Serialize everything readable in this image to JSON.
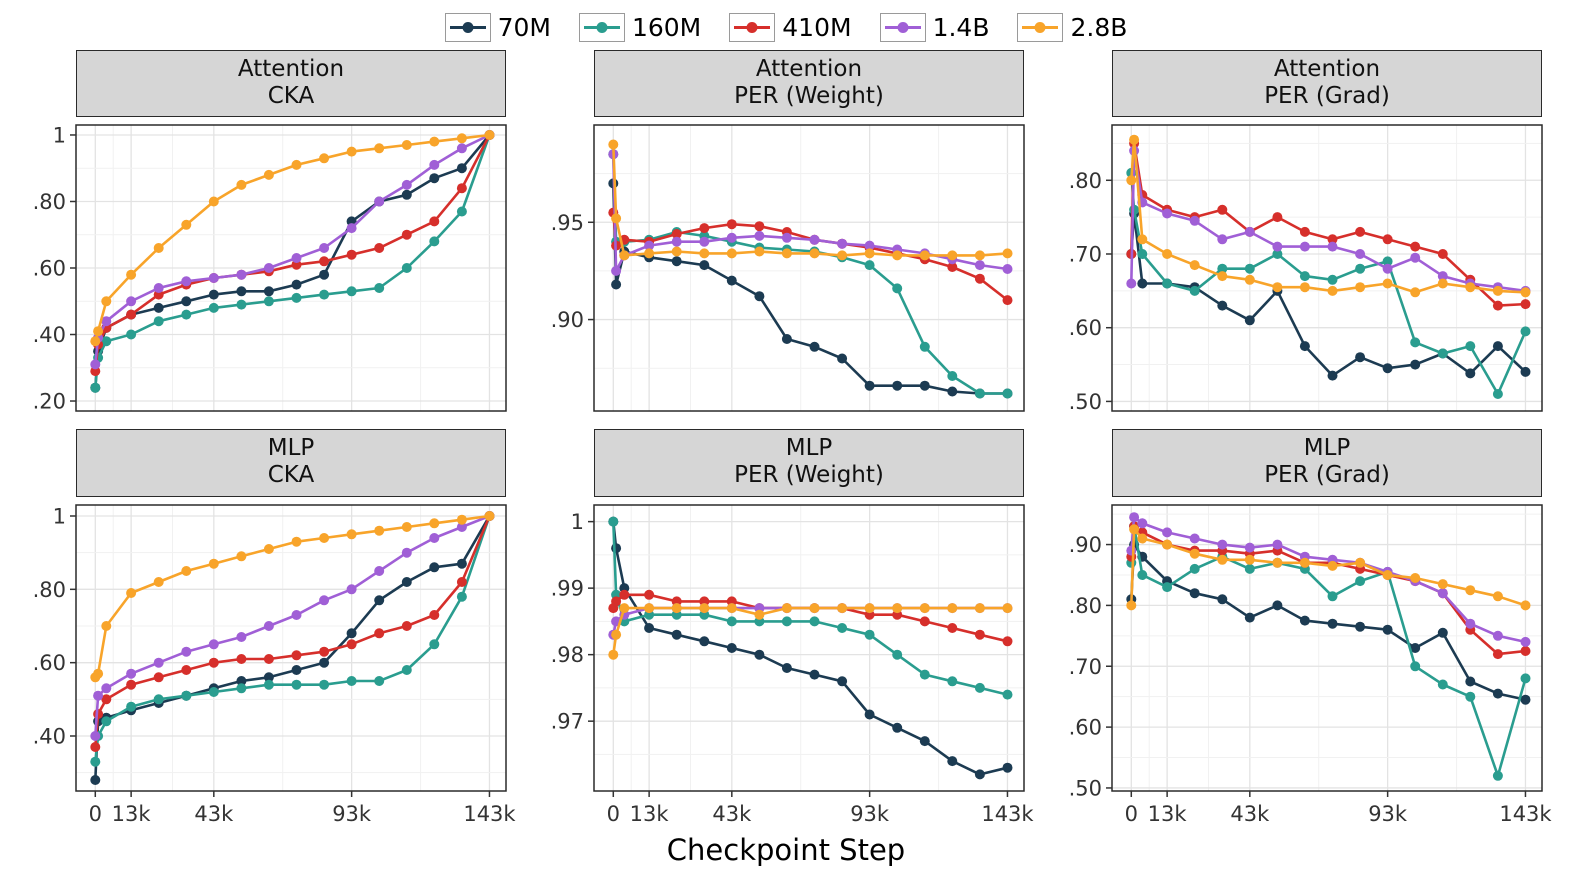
{
  "figure": {
    "xlabel": "Checkpoint Step"
  },
  "legend": {
    "items": [
      {
        "label": "70M",
        "color": "#1c3b52"
      },
      {
        "label": "160M",
        "color": "#2a9d8f"
      },
      {
        "label": "410M",
        "color": "#d62f2b"
      },
      {
        "label": "1.4B",
        "color": "#a05fd6"
      },
      {
        "label": "2.8B",
        "color": "#f8a42a"
      }
    ]
  },
  "axes": {
    "x_domain": [
      -7,
      149
    ],
    "x_ticks": [
      {
        "v": 0,
        "label": "0"
      },
      {
        "v": 13,
        "label": "13k"
      },
      {
        "v": 43,
        "label": "43k"
      },
      {
        "v": 93,
        "label": "93k"
      },
      {
        "v": 143,
        "label": "143k"
      }
    ]
  },
  "chart_data": [
    {
      "type": "line",
      "facet": "Attention",
      "metric": "CKA",
      "ylim": [
        0.17,
        1.03
      ],
      "yticks": [
        {
          "v": 0.2,
          "label": ".20"
        },
        {
          "v": 0.4,
          "label": ".40"
        },
        {
          "v": 0.6,
          "label": ".60"
        },
        {
          "v": 0.8,
          "label": ".80"
        },
        {
          "v": 1,
          "label": "1"
        }
      ],
      "x_thousands": [
        0,
        1,
        4,
        13,
        23,
        33,
        43,
        53,
        63,
        73,
        83,
        93,
        103,
        113,
        123,
        133,
        143
      ],
      "series": [
        {
          "name": "70M",
          "values": [
            0.24,
            0.35,
            0.42,
            0.46,
            0.48,
            0.5,
            0.52,
            0.53,
            0.53,
            0.55,
            0.58,
            0.74,
            0.8,
            0.82,
            0.87,
            0.9,
            1.0
          ]
        },
        {
          "name": "160M",
          "values": [
            0.24,
            0.33,
            0.38,
            0.4,
            0.44,
            0.46,
            0.48,
            0.49,
            0.5,
            0.51,
            0.52,
            0.53,
            0.54,
            0.6,
            0.68,
            0.77,
            1.0
          ]
        },
        {
          "name": "410M",
          "values": [
            0.29,
            0.37,
            0.42,
            0.46,
            0.52,
            0.55,
            0.57,
            0.58,
            0.59,
            0.61,
            0.62,
            0.64,
            0.66,
            0.7,
            0.74,
            0.84,
            1.0
          ]
        },
        {
          "name": "1.4B",
          "values": [
            0.31,
            0.39,
            0.44,
            0.5,
            0.54,
            0.56,
            0.57,
            0.58,
            0.6,
            0.63,
            0.66,
            0.72,
            0.8,
            0.85,
            0.91,
            0.96,
            1.0
          ]
        },
        {
          "name": "2.8B",
          "values": [
            0.38,
            0.41,
            0.5,
            0.58,
            0.66,
            0.73,
            0.8,
            0.85,
            0.88,
            0.91,
            0.93,
            0.95,
            0.96,
            0.97,
            0.98,
            0.99,
            1.0
          ]
        }
      ]
    },
    {
      "type": "line",
      "facet": "Attention",
      "metric": "PER (Weight)",
      "ylim": [
        0.853,
        1.0
      ],
      "yticks": [
        {
          "v": 0.9,
          "label": ".90"
        },
        {
          "v": 0.95,
          "label": ".95"
        }
      ],
      "x_thousands": [
        0,
        1,
        4,
        13,
        23,
        33,
        43,
        53,
        63,
        73,
        83,
        93,
        103,
        113,
        123,
        133,
        143
      ],
      "series": [
        {
          "name": "70M",
          "values": [
            0.97,
            0.918,
            0.935,
            0.932,
            0.93,
            0.928,
            0.92,
            0.912,
            0.89,
            0.886,
            0.88,
            0.866,
            0.866,
            0.866,
            0.863,
            0.862,
            0.862
          ]
        },
        {
          "name": "160M",
          "values": [
            0.985,
            0.94,
            0.94,
            0.941,
            0.945,
            0.943,
            0.94,
            0.937,
            0.936,
            0.935,
            0.932,
            0.928,
            0.916,
            0.886,
            0.871,
            0.862,
            0.862
          ]
        },
        {
          "name": "410M",
          "values": [
            0.955,
            0.938,
            0.941,
            0.94,
            0.944,
            0.947,
            0.949,
            0.948,
            0.945,
            0.941,
            0.939,
            0.937,
            0.934,
            0.931,
            0.927,
            0.921,
            0.91
          ]
        },
        {
          "name": "1.4B",
          "values": [
            0.985,
            0.925,
            0.933,
            0.938,
            0.94,
            0.94,
            0.942,
            0.943,
            0.942,
            0.941,
            0.939,
            0.938,
            0.936,
            0.934,
            0.931,
            0.928,
            0.926
          ]
        },
        {
          "name": "2.8B",
          "values": [
            0.99,
            0.952,
            0.933,
            0.934,
            0.935,
            0.934,
            0.934,
            0.935,
            0.934,
            0.934,
            0.933,
            0.934,
            0.933,
            0.933,
            0.933,
            0.933,
            0.934
          ]
        }
      ]
    },
    {
      "type": "line",
      "facet": "Attention",
      "metric": "PER (Grad)",
      "ylim": [
        0.487,
        0.875
      ],
      "yticks": [
        {
          "v": 0.5,
          "label": ".50"
        },
        {
          "v": 0.6,
          "label": ".60"
        },
        {
          "v": 0.7,
          "label": ".70"
        },
        {
          "v": 0.8,
          "label": ".80"
        }
      ],
      "x_thousands": [
        0,
        1,
        4,
        13,
        23,
        33,
        43,
        53,
        63,
        73,
        83,
        93,
        103,
        113,
        123,
        133,
        143
      ],
      "series": [
        {
          "name": "70M",
          "values": [
            0.7,
            0.755,
            0.66,
            0.66,
            0.655,
            0.63,
            0.61,
            0.65,
            0.575,
            0.535,
            0.56,
            0.545,
            0.55,
            0.565,
            0.538,
            0.575,
            0.54
          ]
        },
        {
          "name": "160M",
          "values": [
            0.81,
            0.76,
            0.7,
            0.66,
            0.65,
            0.68,
            0.68,
            0.7,
            0.67,
            0.665,
            0.68,
            0.69,
            0.58,
            0.565,
            0.575,
            0.51,
            0.595
          ]
        },
        {
          "name": "410M",
          "values": [
            0.7,
            0.85,
            0.78,
            0.76,
            0.75,
            0.76,
            0.73,
            0.75,
            0.73,
            0.72,
            0.73,
            0.72,
            0.71,
            0.7,
            0.665,
            0.63,
            0.632
          ]
        },
        {
          "name": "1.4B",
          "values": [
            0.66,
            0.84,
            0.77,
            0.755,
            0.745,
            0.72,
            0.73,
            0.71,
            0.71,
            0.71,
            0.7,
            0.68,
            0.695,
            0.67,
            0.66,
            0.655,
            0.65
          ]
        },
        {
          "name": "2.8B",
          "values": [
            0.8,
            0.855,
            0.72,
            0.7,
            0.685,
            0.67,
            0.665,
            0.655,
            0.655,
            0.65,
            0.655,
            0.66,
            0.648,
            0.66,
            0.655,
            0.65,
            0.648
          ]
        }
      ]
    },
    {
      "type": "line",
      "facet": "MLP",
      "metric": "CKA",
      "ylim": [
        0.25,
        1.03
      ],
      "yticks": [
        {
          "v": 0.4,
          "label": ".40"
        },
        {
          "v": 0.6,
          "label": ".60"
        },
        {
          "v": 0.8,
          "label": ".80"
        },
        {
          "v": 1,
          "label": "1"
        }
      ],
      "x_thousands": [
        0,
        1,
        4,
        13,
        23,
        33,
        43,
        53,
        63,
        73,
        83,
        93,
        103,
        113,
        123,
        133,
        143
      ],
      "series": [
        {
          "name": "70M",
          "values": [
            0.28,
            0.44,
            0.45,
            0.47,
            0.49,
            0.51,
            0.53,
            0.55,
            0.56,
            0.58,
            0.6,
            0.68,
            0.77,
            0.82,
            0.86,
            0.87,
            1.0
          ]
        },
        {
          "name": "160M",
          "values": [
            0.33,
            0.4,
            0.44,
            0.48,
            0.5,
            0.51,
            0.52,
            0.53,
            0.54,
            0.54,
            0.54,
            0.55,
            0.55,
            0.58,
            0.65,
            0.78,
            1.0
          ]
        },
        {
          "name": "410M",
          "values": [
            0.37,
            0.46,
            0.5,
            0.54,
            0.56,
            0.58,
            0.6,
            0.61,
            0.61,
            0.62,
            0.63,
            0.65,
            0.68,
            0.7,
            0.73,
            0.82,
            1.0
          ]
        },
        {
          "name": "1.4B",
          "values": [
            0.4,
            0.51,
            0.53,
            0.57,
            0.6,
            0.63,
            0.65,
            0.67,
            0.7,
            0.73,
            0.77,
            0.8,
            0.85,
            0.9,
            0.94,
            0.97,
            1.0
          ]
        },
        {
          "name": "2.8B",
          "values": [
            0.56,
            0.57,
            0.7,
            0.79,
            0.82,
            0.85,
            0.87,
            0.89,
            0.91,
            0.93,
            0.94,
            0.95,
            0.96,
            0.97,
            0.98,
            0.99,
            1.0
          ]
        }
      ]
    },
    {
      "type": "line",
      "facet": "MLP",
      "metric": "PER (Weight)",
      "ylim": [
        0.9595,
        1.0025
      ],
      "yticks": [
        {
          "v": 0.97,
          "label": ".97"
        },
        {
          "v": 0.98,
          "label": ".98"
        },
        {
          "v": 0.99,
          "label": ".99"
        },
        {
          "v": 1,
          "label": "1"
        }
      ],
      "x_thousands": [
        0,
        1,
        4,
        13,
        23,
        33,
        43,
        53,
        63,
        73,
        83,
        93,
        103,
        113,
        123,
        133,
        143
      ],
      "series": [
        {
          "name": "70M",
          "values": [
            1.0,
            0.996,
            0.99,
            0.984,
            0.983,
            0.982,
            0.981,
            0.98,
            0.978,
            0.977,
            0.976,
            0.971,
            0.969,
            0.967,
            0.964,
            0.962,
            0.963
          ]
        },
        {
          "name": "160M",
          "values": [
            1.0,
            0.989,
            0.985,
            0.986,
            0.986,
            0.986,
            0.985,
            0.985,
            0.985,
            0.985,
            0.984,
            0.983,
            0.98,
            0.977,
            0.976,
            0.975,
            0.974
          ]
        },
        {
          "name": "410M",
          "values": [
            0.987,
            0.988,
            0.989,
            0.989,
            0.988,
            0.988,
            0.988,
            0.987,
            0.987,
            0.987,
            0.987,
            0.986,
            0.986,
            0.985,
            0.984,
            0.983,
            0.982
          ]
        },
        {
          "name": "1.4B",
          "values": [
            0.983,
            0.985,
            0.986,
            0.987,
            0.987,
            0.987,
            0.987,
            0.987,
            0.987,
            0.987,
            0.987,
            0.987,
            0.987,
            0.987,
            0.987,
            0.987,
            0.987
          ]
        },
        {
          "name": "2.8B",
          "values": [
            0.98,
            0.983,
            0.987,
            0.987,
            0.987,
            0.987,
            0.987,
            0.986,
            0.987,
            0.987,
            0.987,
            0.987,
            0.987,
            0.987,
            0.987,
            0.987,
            0.987
          ]
        }
      ]
    },
    {
      "type": "line",
      "facet": "MLP",
      "metric": "PER (Grad)",
      "ylim": [
        0.495,
        0.965
      ],
      "yticks": [
        {
          "v": 0.5,
          "label": ".50"
        },
        {
          "v": 0.6,
          "label": ".60"
        },
        {
          "v": 0.7,
          "label": ".70"
        },
        {
          "v": 0.8,
          "label": ".80"
        },
        {
          "v": 0.9,
          "label": ".90"
        }
      ],
      "x_thousands": [
        0,
        1,
        4,
        13,
        23,
        33,
        43,
        53,
        63,
        73,
        83,
        93,
        103,
        113,
        123,
        133,
        143
      ],
      "series": [
        {
          "name": "70M",
          "values": [
            0.81,
            0.9,
            0.88,
            0.84,
            0.82,
            0.81,
            0.78,
            0.8,
            0.775,
            0.77,
            0.765,
            0.76,
            0.73,
            0.755,
            0.675,
            0.655,
            0.645
          ]
        },
        {
          "name": "160M",
          "values": [
            0.87,
            0.93,
            0.85,
            0.83,
            0.86,
            0.88,
            0.86,
            0.87,
            0.86,
            0.815,
            0.84,
            0.855,
            0.7,
            0.67,
            0.65,
            0.52,
            0.68
          ]
        },
        {
          "name": "410M",
          "values": [
            0.88,
            0.93,
            0.92,
            0.9,
            0.89,
            0.89,
            0.885,
            0.89,
            0.87,
            0.87,
            0.86,
            0.85,
            0.84,
            0.82,
            0.76,
            0.72,
            0.725
          ]
        },
        {
          "name": "1.4B",
          "values": [
            0.89,
            0.945,
            0.935,
            0.92,
            0.91,
            0.9,
            0.895,
            0.9,
            0.88,
            0.875,
            0.87,
            0.855,
            0.84,
            0.82,
            0.77,
            0.75,
            0.74
          ]
        },
        {
          "name": "2.8B",
          "values": [
            0.8,
            0.925,
            0.91,
            0.9,
            0.885,
            0.875,
            0.875,
            0.87,
            0.87,
            0.865,
            0.87,
            0.85,
            0.845,
            0.835,
            0.825,
            0.815,
            0.8
          ]
        }
      ]
    }
  ]
}
